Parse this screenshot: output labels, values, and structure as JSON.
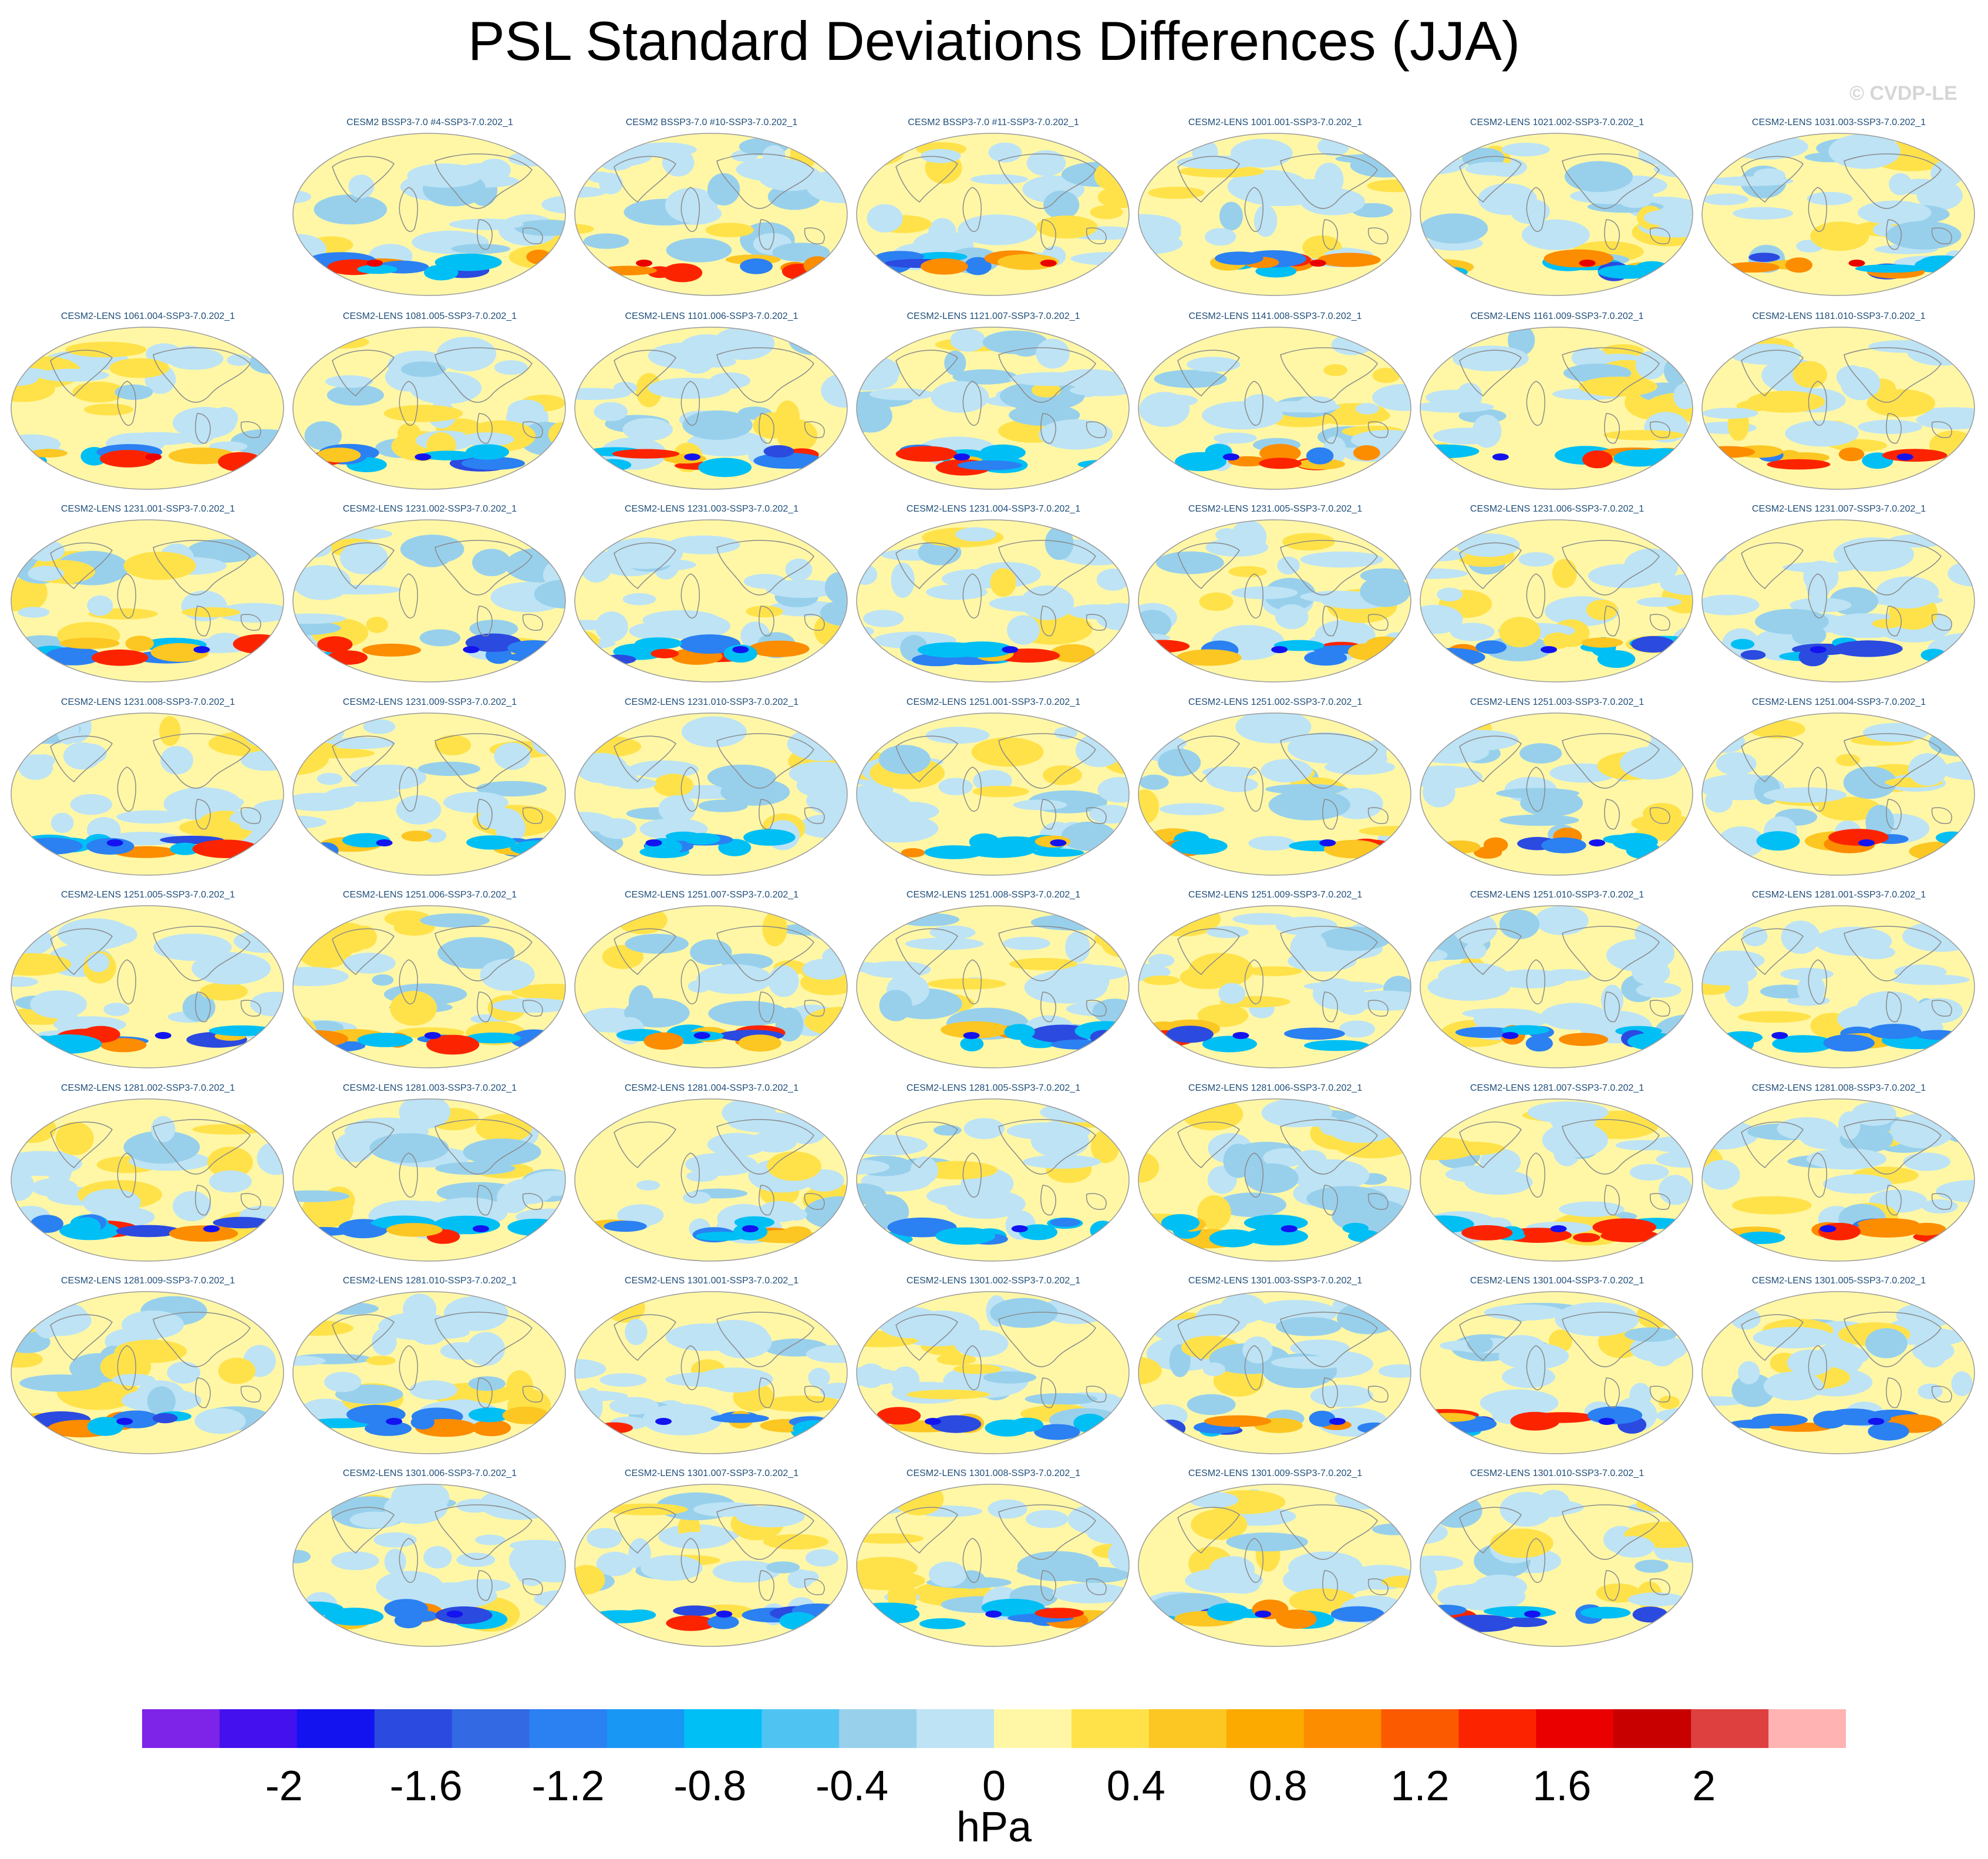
{
  "title": "PSL Standard Deviations Differences (JJA)",
  "watermark": "© CVDP-LE",
  "chart_data": {
    "type": "heatmap",
    "title": "PSL Standard Deviations Differences (JJA)",
    "projection": "global map (Robinson)",
    "variable": "PSL",
    "season": "JJA",
    "units": "hPa",
    "panels": [
      "CESM2 BSSP3-7.0 #4-SSP3-7.0.202_1",
      "CESM2 BSSP3-7.0 #10-SSP3-7.0.202_1",
      "CESM2 BSSP3-7.0 #11-SSP3-7.0.202_1",
      "CESM2-LENS 1001.001-SSP3-7.0.202_1",
      "CESM2-LENS 1021.002-SSP3-7.0.202_1",
      "CESM2-LENS 1031.003-SSP3-7.0.202_1",
      "CESM2-LENS 1061.004-SSP3-7.0.202_1",
      "CESM2-LENS 1081.005-SSP3-7.0.202_1",
      "CESM2-LENS 1101.006-SSP3-7.0.202_1",
      "CESM2-LENS 1121.007-SSP3-7.0.202_1",
      "CESM2-LENS 1141.008-SSP3-7.0.202_1",
      "CESM2-LENS 1161.009-SSP3-7.0.202_1",
      "CESM2-LENS 1181.010-SSP3-7.0.202_1",
      "CESM2-LENS 1231.001-SSP3-7.0.202_1",
      "CESM2-LENS 1231.002-SSP3-7.0.202_1",
      "CESM2-LENS 1231.003-SSP3-7.0.202_1",
      "CESM2-LENS 1231.004-SSP3-7.0.202_1",
      "CESM2-LENS 1231.005-SSP3-7.0.202_1",
      "CESM2-LENS 1231.006-SSP3-7.0.202_1",
      "CESM2-LENS 1231.007-SSP3-7.0.202_1",
      "CESM2-LENS 1231.008-SSP3-7.0.202_1",
      "CESM2-LENS 1231.009-SSP3-7.0.202_1",
      "CESM2-LENS 1231.010-SSP3-7.0.202_1",
      "CESM2-LENS 1251.001-SSP3-7.0.202_1",
      "CESM2-LENS 1251.002-SSP3-7.0.202_1",
      "CESM2-LENS 1251.003-SSP3-7.0.202_1",
      "CESM2-LENS 1251.004-SSP3-7.0.202_1",
      "CESM2-LENS 1251.005-SSP3-7.0.202_1",
      "CESM2-LENS 1251.006-SSP3-7.0.202_1",
      "CESM2-LENS 1251.007-SSP3-7.0.202_1",
      "CESM2-LENS 1251.008-SSP3-7.0.202_1",
      "CESM2-LENS 1251.009-SSP3-7.0.202_1",
      "CESM2-LENS 1251.010-SSP3-7.0.202_1",
      "CESM2-LENS 1281.001-SSP3-7.0.202_1",
      "CESM2-LENS 1281.002-SSP3-7.0.202_1",
      "CESM2-LENS 1281.003-SSP3-7.0.202_1",
      "CESM2-LENS 1281.004-SSP3-7.0.202_1",
      "CESM2-LENS 1281.005-SSP3-7.0.202_1",
      "CESM2-LENS 1281.006-SSP3-7.0.202_1",
      "CESM2-LENS 1281.007-SSP3-7.0.202_1",
      "CESM2-LENS 1281.008-SSP3-7.0.202_1",
      "CESM2-LENS 1281.009-SSP3-7.0.202_1",
      "CESM2-LENS 1281.010-SSP3-7.0.202_1",
      "CESM2-LENS 1301.001-SSP3-7.0.202_1",
      "CESM2-LENS 1301.002-SSP3-7.0.202_1",
      "CESM2-LENS 1301.003-SSP3-7.0.202_1",
      "CESM2-LENS 1301.004-SSP3-7.0.202_1",
      "CESM2-LENS 1301.005-SSP3-7.0.202_1",
      "CESM2-LENS 1301.006-SSP3-7.0.202_1",
      "CESM2-LENS 1301.007-SSP3-7.0.202_1",
      "CESM2-LENS 1301.008-SSP3-7.0.202_1",
      "CESM2-LENS 1301.009-SSP3-7.0.202_1",
      "CESM2-LENS 1301.010-SSP3-7.0.202_1"
    ],
    "colorbar": {
      "units": "hPa",
      "range": [
        -2.4,
        2.4
      ],
      "tick_values": [
        -2,
        -1.6,
        -1.2,
        -0.8,
        -0.4,
        0,
        0.4,
        0.8,
        1.2,
        1.6,
        2
      ],
      "tick_labels": [
        "-2",
        "-1.6",
        "-1.2",
        "-0.8",
        "-0.4",
        "0",
        "0.4",
        "0.8",
        "1.2",
        "1.6",
        "2"
      ],
      "colors": [
        "#7e23e8",
        "#4410ee",
        "#1313f0",
        "#2b4ae0",
        "#3369e2",
        "#2b80f2",
        "#1897f5",
        "#00bff5",
        "#4fc4f3",
        "#98d0ec",
        "#bde3f5",
        "#fff7a6",
        "#ffe24a",
        "#fcc623",
        "#fdaa00",
        "#fc8c00",
        "#fc5a00",
        "#fc2400",
        "#eb0000",
        "#c80000",
        "#de4040",
        "#ffb3b3"
      ]
    }
  }
}
